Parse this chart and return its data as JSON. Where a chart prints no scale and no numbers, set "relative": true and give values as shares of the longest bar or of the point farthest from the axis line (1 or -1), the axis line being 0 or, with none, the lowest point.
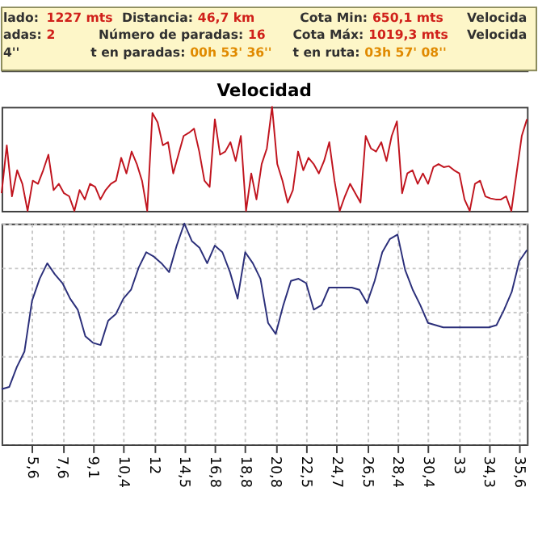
{
  "chart_data": [
    {
      "type": "other",
      "annotations": [
        "lado: 1227 mts",
        "Distancia: 46,7 km",
        "Cota Min: 650,1 mts",
        "Velocida",
        "adas: 2",
        "Número de paradas: 16",
        "Cota Máx: 1019,3 mts",
        "Velocida",
        "4''",
        "t en paradas: 00h 53' 36''",
        "t en ruta: 03h 57' 08''"
      ]
    },
    {
      "type": "line",
      "title": "Velocidad",
      "relative": true,
      "color": "#c0141e",
      "categories": [
        null,
        null,
        null,
        null,
        null,
        null,
        null,
        null,
        null,
        null,
        null,
        null,
        null,
        null,
        null,
        null,
        null,
        null,
        null,
        null,
        null,
        null,
        null,
        null,
        null,
        null,
        null,
        null,
        null,
        null,
        null,
        null,
        null,
        null,
        null,
        null,
        null,
        null,
        null,
        null,
        null,
        null,
        null,
        null,
        null,
        null,
        null,
        null,
        null,
        null,
        null,
        null,
        null,
        null,
        null,
        null,
        null,
        null,
        null,
        null,
        null,
        null,
        null,
        null,
        null,
        null,
        null,
        null,
        null,
        null,
        null,
        null,
        null,
        null,
        null,
        null,
        null,
        null,
        null,
        null,
        null,
        null,
        null,
        null,
        null,
        null,
        null,
        null,
        null,
        null,
        null,
        null,
        null,
        null,
        null,
        null,
        null,
        null,
        null,
        null,
        null,
        null
      ],
      "values": [
        0.17,
        0.63,
        0.14,
        0.39,
        0.26,
        0,
        0.29,
        0.26,
        0.39,
        0.54,
        0.2,
        0.26,
        0.17,
        0.14,
        0,
        0.2,
        0.11,
        0.26,
        0.23,
        0.11,
        0.2,
        0.26,
        0.29,
        0.51,
        0.36,
        0.57,
        0.45,
        0.29,
        0,
        0.94,
        0.85,
        0.63,
        0.66,
        0.36,
        0.54,
        0.72,
        0.75,
        0.79,
        0.57,
        0.29,
        0.23,
        0.88,
        0.54,
        0.57,
        0.66,
        0.48,
        0.72,
        0,
        0.36,
        0.11,
        0.45,
        0.6,
        1,
        0.45,
        0.29,
        0.08,
        0.2,
        0.57,
        0.39,
        0.51,
        0.45,
        0.36,
        0.48,
        0.66,
        0.29,
        0,
        0.14,
        0.26,
        0.17,
        0.08,
        0.72,
        0.6,
        0.57,
        0.66,
        0.48,
        0.72,
        0.86,
        0.17,
        0.36,
        0.39,
        0.26,
        0.36,
        0.26,
        0.42,
        0.45,
        0.42,
        0.43,
        0.39,
        0.36,
        0.11,
        0,
        0.26,
        0.29,
        0.14,
        0.12,
        0.11,
        0.11,
        0.14,
        0,
        0.36,
        0.72,
        0.88
      ],
      "grid": false,
      "tick_labels": false
    },
    {
      "type": "line",
      "relative": true,
      "color": "#2b2f7a",
      "grid": true,
      "tick_labels": "x",
      "categories": [
        null,
        null,
        null,
        null,
        "5,6",
        null,
        null,
        null,
        "7,6",
        null,
        null,
        null,
        "9,1",
        null,
        null,
        null,
        "10,4",
        null,
        null,
        null,
        "12",
        null,
        null,
        null,
        "14,5",
        null,
        null,
        null,
        "16,8",
        null,
        null,
        null,
        "18,8",
        null,
        null,
        null,
        "20,8",
        null,
        null,
        null,
        "22,5",
        null,
        null,
        null,
        "24,7",
        null,
        null,
        null,
        "26,5",
        null,
        null,
        null,
        "28,4",
        null,
        null,
        null,
        "30,4",
        null,
        null,
        null,
        "33",
        null,
        null,
        null,
        "34,3",
        null,
        null,
        null,
        "35,6",
        null
      ],
      "values": [
        0.25,
        0.26,
        0.35,
        0.42,
        0.65,
        0.75,
        0.82,
        0.77,
        0.73,
        0.66,
        0.61,
        0.49,
        0.46,
        0.45,
        0.56,
        0.59,
        0.66,
        0.7,
        0.8,
        0.87,
        0.85,
        0.82,
        0.78,
        0.9,
        1,
        0.92,
        0.89,
        0.82,
        0.9,
        0.87,
        0.78,
        0.66,
        0.87,
        0.82,
        0.75,
        0.55,
        0.5,
        0.63,
        0.74,
        0.75,
        0.73,
        0.61,
        0.63,
        0.71,
        0.71,
        0.71,
        0.71,
        0.7,
        0.64,
        0.74,
        0.87,
        0.93,
        0.95,
        0.79,
        0.7,
        0.63,
        0.55,
        0.54,
        0.53,
        0.53,
        0.53,
        0.53,
        0.53,
        0.53,
        0.53,
        0.54,
        0.61,
        0.69,
        0.83,
        0.88
      ]
    }
  ]
}
